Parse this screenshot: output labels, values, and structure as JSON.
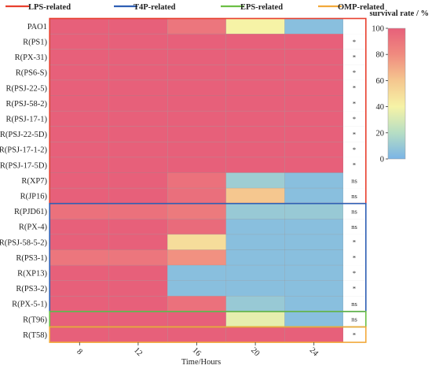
{
  "chart_data": {
    "type": "heatmap",
    "title": "",
    "xlabel": "Time/Hours",
    "x": [
      "8",
      "12",
      "16",
      "20",
      "24"
    ],
    "rows": [
      {
        "label": "PAO1",
        "values": [
          100,
          100,
          90,
          40,
          5
        ],
        "sig": ""
      },
      {
        "label": "R(PS1)",
        "values": [
          100,
          100,
          100,
          100,
          100
        ],
        "sig": "*"
      },
      {
        "label": "R(PX-31)",
        "values": [
          100,
          100,
          100,
          100,
          100
        ],
        "sig": "*"
      },
      {
        "label": "R(PS6-S)",
        "values": [
          100,
          100,
          100,
          100,
          100
        ],
        "sig": "*"
      },
      {
        "label": "R(PSJ-22-5)",
        "values": [
          100,
          100,
          100,
          100,
          100
        ],
        "sig": "*"
      },
      {
        "label": "R(PSJ-58-2)",
        "values": [
          100,
          100,
          100,
          100,
          100
        ],
        "sig": "*"
      },
      {
        "label": "R(PSJ-17-1)",
        "values": [
          100,
          100,
          100,
          100,
          100
        ],
        "sig": "*"
      },
      {
        "label": "R(PSJ-22-5D)",
        "values": [
          100,
          100,
          100,
          100,
          100
        ],
        "sig": "*"
      },
      {
        "label": "R(PSJ-17-1-2)",
        "values": [
          100,
          100,
          100,
          100,
          100
        ],
        "sig": "*"
      },
      {
        "label": "R(PSJ-17-5D)",
        "values": [
          100,
          100,
          100,
          100,
          100
        ],
        "sig": "*"
      },
      {
        "label": "R(XP7)",
        "values": [
          100,
          100,
          92,
          12,
          5
        ],
        "sig": "ns"
      },
      {
        "label": "R(JP16)",
        "values": [
          100,
          100,
          93,
          60,
          5
        ],
        "sig": "ns"
      },
      {
        "label": "R(PJD61)",
        "values": [
          92,
          92,
          88,
          10,
          10
        ],
        "sig": "ns"
      },
      {
        "label": "R(PX-4)",
        "values": [
          100,
          100,
          95,
          5,
          5
        ],
        "sig": "ns"
      },
      {
        "label": "R(PSJ-58-5-2)",
        "values": [
          100,
          100,
          50,
          5,
          5
        ],
        "sig": "*"
      },
      {
        "label": "R(PS3-1)",
        "values": [
          90,
          90,
          78,
          5,
          5
        ],
        "sig": "*"
      },
      {
        "label": "R(XP13)",
        "values": [
          100,
          100,
          5,
          5,
          5
        ],
        "sig": "*"
      },
      {
        "label": "R(PS3-2)",
        "values": [
          100,
          100,
          5,
          5,
          5
        ],
        "sig": "*"
      },
      {
        "label": "R(PX-5-1)",
        "values": [
          100,
          100,
          92,
          10,
          5
        ],
        "sig": "ns"
      },
      {
        "label": "R(T96)",
        "values": [
          100,
          100,
          100,
          35,
          5
        ],
        "sig": "ns"
      },
      {
        "label": "R(T58)",
        "values": [
          100,
          100,
          100,
          100,
          100
        ],
        "sig": "*"
      }
    ],
    "legend": [
      {
        "name": "LPS-related",
        "color": "#e8402f"
      },
      {
        "name": "T4P-related",
        "color": "#2f5fb4"
      },
      {
        "name": "EPS-related",
        "color": "#6cbf45"
      },
      {
        "name": "OMP-related",
        "color": "#f2a93b"
      }
    ],
    "groups": [
      {
        "legend_index": 0,
        "rows": [
          0,
          11
        ]
      },
      {
        "legend_index": 1,
        "rows": [
          12,
          18
        ]
      },
      {
        "legend_index": 2,
        "rows": [
          19,
          19
        ]
      },
      {
        "legend_index": 3,
        "rows": [
          20,
          20
        ]
      }
    ],
    "colorbar": {
      "title": "survival rate / %",
      "ticks": [
        0,
        20,
        40,
        60,
        80,
        100
      ],
      "range": [
        0,
        100
      ],
      "colors": [
        "#7ab4e6",
        "#b6dec4",
        "#f6f3a6",
        "#f5c78f",
        "#f08b7f",
        "#e7607a"
      ]
    }
  }
}
